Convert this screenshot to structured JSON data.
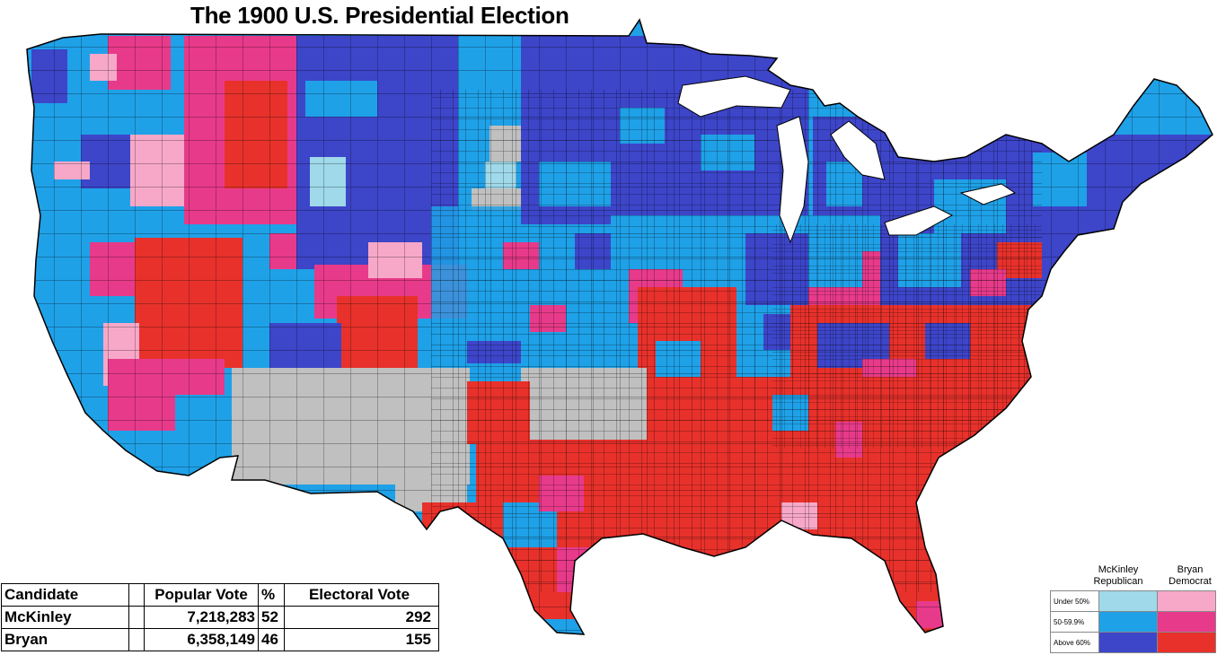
{
  "title": "The 1900 U.S. Presidential Election",
  "results": {
    "headers": {
      "candidate": "Candidate",
      "popular_vote": "Popular Vote",
      "percent": "%",
      "electoral_vote": "Electoral Vote"
    },
    "rows": [
      {
        "candidate": "McKinley",
        "popular_vote": "7,218,283",
        "percent": "52",
        "electoral_vote": "292"
      },
      {
        "candidate": "Bryan",
        "popular_vote": "6,358,149",
        "percent": "46",
        "electoral_vote": "155"
      }
    ]
  },
  "legend": {
    "columns": [
      {
        "line1": "McKinley",
        "line2": "Republican"
      },
      {
        "line1": "Bryan",
        "line2": "Democrat"
      }
    ],
    "rows": [
      {
        "label": "Under 50%",
        "republican_color": "#9fd9ea",
        "democrat_color": "#f7a8c8"
      },
      {
        "label": "50-59.9%",
        "republican_color": "#1fa1e8",
        "democrat_color": "#e83a8a"
      },
      {
        "label": "Above 60%",
        "republican_color": "#3d45c9",
        "democrat_color": "#e8312b"
      }
    ],
    "no_vote_color": "#c0c0c0"
  }
}
